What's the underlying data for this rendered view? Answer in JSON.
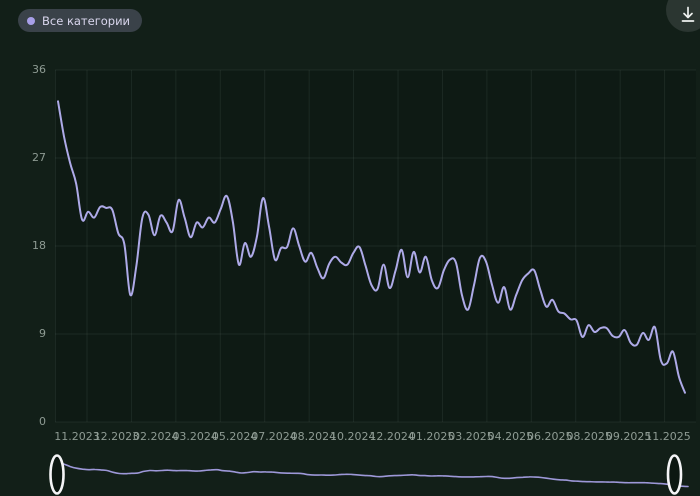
{
  "header": {
    "category_badge": {
      "label": "Все категории",
      "dot_color": "#a89fe8"
    },
    "download_button": {
      "icon": "download-icon"
    }
  },
  "colors": {
    "page_bg": "#121f18",
    "plot_bg": "#0e1a14",
    "grid_line": "rgba(173,196,185,0.09)",
    "axis_text": "#8e9b93",
    "series_line": "#aeaae8",
    "brush_line": "#9d98d8",
    "badge_bg": "#3a4249",
    "badge_text": "#dad7ee",
    "handle_stroke": "#f4f4f6",
    "handle_fill": "#0c1711"
  },
  "chart_data": {
    "type": "line",
    "title": "",
    "xlabel": "",
    "ylabel": "",
    "ylim": [
      0,
      36
    ],
    "grid": "on",
    "smooth": true,
    "legend_position": "top-left",
    "x_range": [
      "11.2023",
      "11.2025"
    ],
    "x_tick_labels": [
      "11.2023",
      "12.2023",
      "02.2024",
      "03.2024",
      "05.2024",
      "07.2024",
      "08.2024",
      "10.2024",
      "12.2024",
      "01.2025",
      "03.2025",
      "04.2025",
      "06.2025",
      "08.2025",
      "09.2025",
      "11.2025"
    ],
    "y_tick_labels": [
      "36",
      "27",
      "18",
      "9",
      "0"
    ],
    "series": [
      {
        "name": "Все категории",
        "color": "#aeaae8",
        "values": [
          32.8,
          29.2,
          26.5,
          24.4,
          20.7,
          21.5,
          20.9,
          22.0,
          21.9,
          21.7,
          19.3,
          18.2,
          13.0,
          16.0,
          20.9,
          21.2,
          19.1,
          21.1,
          20.4,
          19.5,
          22.7,
          20.9,
          18.9,
          20.4,
          19.9,
          20.9,
          20.4,
          21.8,
          23.1,
          20.5,
          16.1,
          18.3,
          16.9,
          19.0,
          22.9,
          20.0,
          16.6,
          17.8,
          17.9,
          19.8,
          18.0,
          16.4,
          17.3,
          15.8,
          14.7,
          16.2,
          16.9,
          16.3,
          16.1,
          17.3,
          17.9,
          16.0,
          14.0,
          13.6,
          16.1,
          13.7,
          15.5,
          17.6,
          14.8,
          17.4,
          15.3,
          16.9,
          14.5,
          13.7,
          15.5,
          16.6,
          16.3,
          13.0,
          11.5,
          14.0,
          16.8,
          16.4,
          14.0,
          12.2,
          13.8,
          11.5,
          13.0,
          14.5,
          15.2,
          15.5,
          13.5,
          11.8,
          12.5,
          11.3,
          11.1,
          10.5,
          10.4,
          8.7,
          9.9,
          9.2,
          9.6,
          9.6,
          8.8,
          8.7,
          9.4,
          8.1,
          7.9,
          9.1,
          8.4,
          9.7,
          6.3,
          6.0,
          7.2,
          4.6,
          3.0
        ]
      }
    ],
    "brush": {
      "enabled": true,
      "selection_start": "11.2023",
      "selection_end": "11.2025"
    }
  }
}
